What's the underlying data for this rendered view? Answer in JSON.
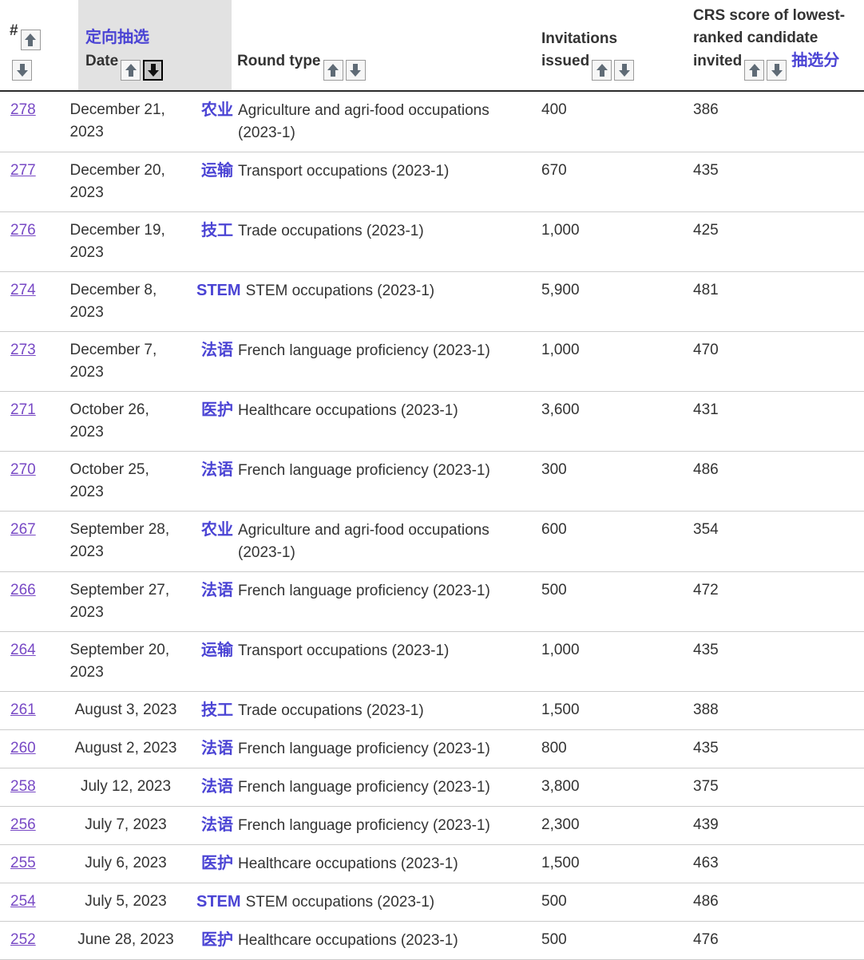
{
  "colors": {
    "annotation": "#4b44d4",
    "link": "#7849c5",
    "text": "#333333",
    "header_active_bg": "#e2e2e2",
    "separator": "#cccccc",
    "arrow": "#5f6b76",
    "arrow_active": "#111111"
  },
  "icons": {
    "ascending": "sort-ascending-icon",
    "descending": "sort-descending-icon"
  },
  "header": {
    "num_label": "#",
    "date_label": "Date",
    "date_annotation": "定向抽选",
    "round_label": "Round type",
    "invitations_label": "Invitations issued",
    "crs_label": "CRS score of lowest-ranked candidate invited",
    "crs_annotation": "抽选分",
    "active_sort": "date-desc"
  },
  "rows": [
    {
      "num": "278",
      "date": "December 21, 2023",
      "tag": "农业",
      "round": "Agriculture and agri-food occupations (2023-1)",
      "invitations": "400",
      "crs": "386"
    },
    {
      "num": "277",
      "date": "December 20, 2023",
      "tag": "运输",
      "round": "Transport occupations (2023-1)",
      "invitations": "670",
      "crs": "435"
    },
    {
      "num": "276",
      "date": "December 19, 2023",
      "tag": "技工",
      "round": "Trade occupations (2023-1)",
      "invitations": "1,000",
      "crs": "425"
    },
    {
      "num": "274",
      "date": "December 8, 2023",
      "tag": "STEM",
      "round": "STEM occupations (2023-1)",
      "invitations": "5,900",
      "crs": "481"
    },
    {
      "num": "273",
      "date": "December 7, 2023",
      "tag": "法语",
      "round": "French language proficiency (2023-1)",
      "invitations": "1,000",
      "crs": "470"
    },
    {
      "num": "271",
      "date": "October 26, 2023",
      "tag": "医护",
      "round": "Healthcare occupations (2023-1)",
      "invitations": "3,600",
      "crs": "431"
    },
    {
      "num": "270",
      "date": "October 25, 2023",
      "tag": "法语",
      "round": "French language proficiency (2023-1)",
      "invitations": "300",
      "crs": "486"
    },
    {
      "num": "267",
      "date": "September 28, 2023",
      "tag": "农业",
      "round": "Agriculture and agri-food occupations (2023-1)",
      "invitations": "600",
      "crs": "354"
    },
    {
      "num": "266",
      "date": "September 27, 2023",
      "tag": "法语",
      "round": "French language proficiency (2023-1)",
      "invitations": "500",
      "crs": "472"
    },
    {
      "num": "264",
      "date": "September 20, 2023",
      "tag": "运输",
      "round": "Transport occupations (2023-1)",
      "invitations": "1,000",
      "crs": "435"
    },
    {
      "num": "261",
      "date": "August 3, 2023",
      "tag": "技工",
      "round": "Trade occupations (2023-1)",
      "invitations": "1,500",
      "crs": "388"
    },
    {
      "num": "260",
      "date": "August 2, 2023",
      "tag": "法语",
      "round": "French language proficiency (2023-1)",
      "invitations": "800",
      "crs": "435"
    },
    {
      "num": "258",
      "date": "July 12, 2023",
      "tag": "法语",
      "round": "French language proficiency (2023-1)",
      "invitations": "3,800",
      "crs": "375"
    },
    {
      "num": "256",
      "date": "July 7, 2023",
      "tag": "法语",
      "round": "French language proficiency (2023-1)",
      "invitations": "2,300",
      "crs": "439"
    },
    {
      "num": "255",
      "date": "July 6, 2023",
      "tag": "医护",
      "round": "Healthcare occupations (2023-1)",
      "invitations": "1,500",
      "crs": "463"
    },
    {
      "num": "254",
      "date": "July 5, 2023",
      "tag": "STEM",
      "round": "STEM occupations (2023-1)",
      "invitations": "500",
      "crs": "486"
    },
    {
      "num": "252",
      "date": "June 28, 2023",
      "tag": "医护",
      "round": "Healthcare occupations (2023-1)",
      "invitations": "500",
      "crs": "476"
    }
  ]
}
